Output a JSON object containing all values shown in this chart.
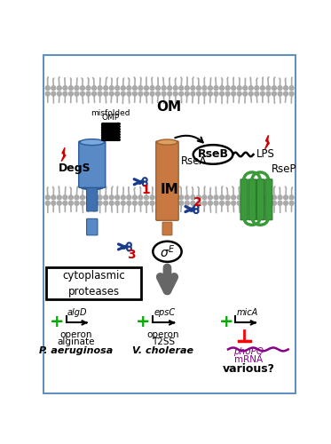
{
  "bg_color": "#ffffff",
  "border_color": "#6090c0",
  "mc": "#aaaaaa",
  "degs_color_main": "#5a8ac5",
  "degs_color_dark": "#2a5a95",
  "degs_color_light": "#7aaadd",
  "rsea_color_main": "#c87941",
  "rsea_color_dark": "#a06030",
  "rsea_color_light": "#dda060",
  "rsep_color": "#3a9a3a",
  "rsep_dark": "#2a7a2a",
  "plus_color": "#00aa00",
  "red_color": "#cc0000",
  "scissors_color": "#1a3a8a",
  "phopq_color": "#880088",
  "arrow_gray": "#666666",
  "om_label": "OM",
  "im_label": "IM",
  "degs_label": "DegS",
  "rsea_label": "RseA",
  "rseb_label": "RseB",
  "rsep_label": "RseP",
  "lps_label": "LPS",
  "cyto_label1": "cytoplasmic",
  "cyto_label2": "proteases",
  "pa_label": "P. aeruginosa",
  "vc_label": "V. cholerae",
  "various_label": "various?"
}
